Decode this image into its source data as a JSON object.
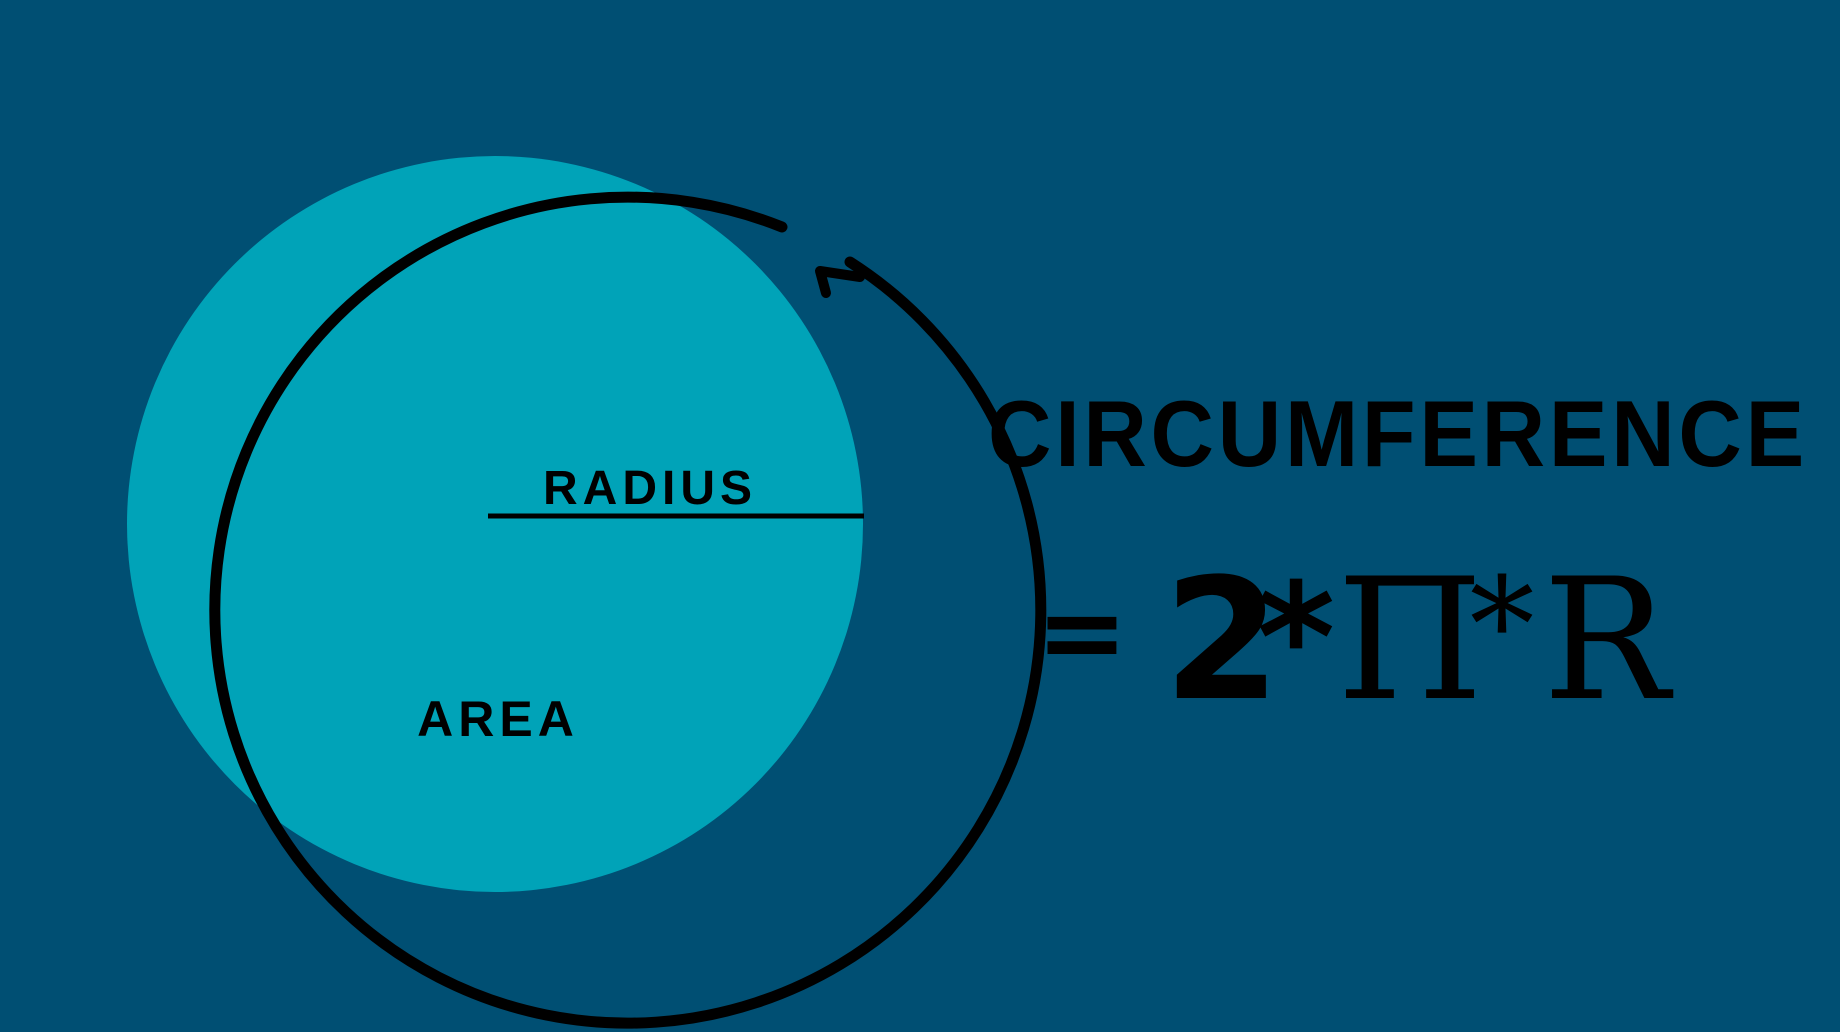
{
  "colors": {
    "background": "#004f73",
    "area_fill": "#00a3b8",
    "ink": "#000000"
  },
  "labels": {
    "radius": "RADIUS",
    "area": "AREA",
    "circumference": "CIRCUMFERENCE"
  },
  "formula": {
    "equals": "=",
    "two": "2",
    "times_1": "*",
    "pi": "Π",
    "times_2": "*",
    "r": "R"
  },
  "icons": {
    "arrow": "arrowhead-icon"
  }
}
